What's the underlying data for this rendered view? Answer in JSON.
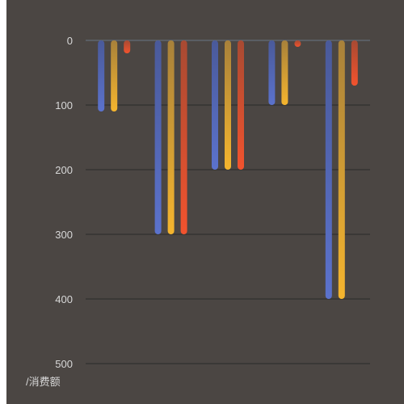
{
  "chart_data": {
    "type": "bar",
    "orientation": "vertical",
    "y_axis_inverse": true,
    "ylim": [
      0,
      500
    ],
    "y_ticks": [
      "0",
      "100",
      "200",
      "300",
      "400",
      "500"
    ],
    "ylabel": "/消费额",
    "categories": [
      "",
      "",
      "",
      "",
      ""
    ],
    "series": [
      {
        "values": [
          110,
          300,
          200,
          100,
          400
        ],
        "color_top": "#4a5a9a",
        "color_bottom": "#5b72cc"
      },
      {
        "values": [
          110,
          300,
          200,
          100,
          400
        ],
        "color_top": "#a8813a",
        "color_bottom": "#f5b52e"
      },
      {
        "values": [
          20,
          300,
          200,
          10,
          70
        ],
        "color_top": "#a84a32",
        "color_bottom": "#f2532e"
      }
    ],
    "grid": true,
    "legend": "none",
    "background": "#4b4643",
    "grid_color": "#2a2a2a",
    "axis_line_color": "#6a7586",
    "label_color": "#d8d8d8"
  }
}
